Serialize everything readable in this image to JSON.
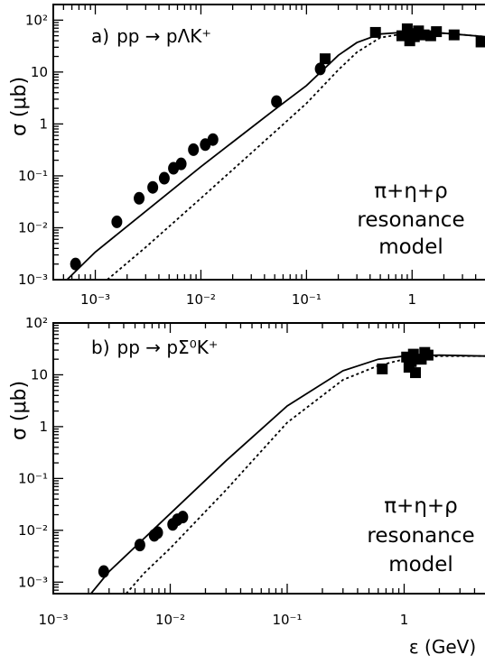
{
  "chart_data": [
    {
      "type": "scatter",
      "panel_label": "a)",
      "reaction": "pp → pΛK⁺",
      "ylabel": "σ  (μb)",
      "xlabel": "",
      "x_scale": "log",
      "y_scale": "log",
      "xlim": [
        0.0004,
        5
      ],
      "ylim": [
        0.001,
        200
      ],
      "x_ticks": [
        0.001,
        0.01,
        0.1,
        1
      ],
      "x_tick_labels": [
        "10⁻³",
        "10⁻²",
        "10⁻¹",
        "1"
      ],
      "y_ticks": [
        0.001,
        0.01,
        0.1,
        1,
        10,
        100
      ],
      "y_tick_labels": [
        "10⁻³",
        "10⁻²",
        "10⁻¹",
        "1",
        "10",
        "10²"
      ],
      "annotation": [
        "π+η+ρ",
        "resonance",
        "model"
      ],
      "series": [
        {
          "marker": "circle",
          "x": [
            0.00065,
            0.0016,
            0.0026,
            0.0035,
            0.0045,
            0.0055,
            0.0065,
            0.0085,
            0.011,
            0.013,
            0.052,
            0.135
          ],
          "y": [
            0.002,
            0.013,
            0.037,
            0.06,
            0.09,
            0.14,
            0.17,
            0.32,
            0.4,
            0.5,
            2.7,
            11.5
          ]
        },
        {
          "marker": "square",
          "x": [
            0.15,
            0.45,
            0.8,
            0.9,
            0.95,
            1.0,
            1.05,
            1.15,
            1.3,
            1.5,
            1.7,
            2.5,
            4.5
          ],
          "y": [
            18,
            58,
            50,
            68,
            40,
            55,
            48,
            62,
            52,
            50,
            60,
            52,
            38
          ]
        },
        {
          "style": "solid",
          "x": [
            0.0004,
            0.001,
            0.01,
            0.05,
            0.1,
            0.2,
            0.3,
            0.5,
            1,
            2,
            5
          ],
          "y": [
            0.00055,
            0.0034,
            0.15,
            1.9,
            5.5,
            21,
            37,
            54,
            60,
            56,
            48
          ]
        },
        {
          "style": "dotted",
          "x": [
            0.0013,
            0.003,
            0.01,
            0.05,
            0.1,
            0.2,
            0.3,
            0.5,
            1,
            2,
            5
          ],
          "y": [
            0.001,
            0.0042,
            0.037,
            0.7,
            2.5,
            11,
            24,
            46,
            58,
            56,
            48
          ]
        }
      ]
    },
    {
      "type": "scatter",
      "panel_label": "b)",
      "reaction": "pp → pΣ⁰K⁺",
      "ylabel": "σ  (μb)",
      "xlabel": "ε  (GeV)",
      "x_scale": "log",
      "y_scale": "log",
      "xlim": [
        0.001,
        5
      ],
      "ylim": [
        0.0006,
        100
      ],
      "x_ticks": [
        0.001,
        0.01,
        0.1,
        1
      ],
      "x_tick_labels": [
        "10⁻³",
        "10⁻²",
        "10⁻¹",
        "1"
      ],
      "y_ticks": [
        0.001,
        0.01,
        0.1,
        1,
        10,
        100
      ],
      "y_tick_labels": [
        "10⁻³",
        "10⁻²",
        "10⁻¹",
        "1",
        "10",
        "10²"
      ],
      "annotation": [
        "π+η+ρ",
        "resonance",
        "model"
      ],
      "series": [
        {
          "marker": "circle",
          "x": [
            0.0027,
            0.0055,
            0.0073,
            0.0078,
            0.0105,
            0.0115,
            0.0128
          ],
          "y": [
            0.0016,
            0.0052,
            0.008,
            0.009,
            0.013,
            0.016,
            0.018
          ]
        },
        {
          "marker": "square",
          "x": [
            0.65,
            1.05,
            1.1,
            1.15,
            1.2,
            1.25,
            1.4,
            1.5,
            1.6
          ],
          "y": [
            13,
            22,
            14,
            18,
            25,
            11,
            20,
            27,
            24
          ]
        },
        {
          "style": "solid",
          "x": [
            0.0021,
            0.003,
            0.01,
            0.03,
            0.1,
            0.3,
            0.6,
            1,
            2,
            5
          ],
          "y": [
            0.0006,
            0.0016,
            0.021,
            0.22,
            2.5,
            12,
            20,
            23,
            24,
            23
          ]
        },
        {
          "style": "dotted",
          "x": [
            0.0042,
            0.006,
            0.01,
            0.03,
            0.1,
            0.3,
            0.6,
            1,
            2,
            5
          ],
          "y": [
            0.0006,
            0.0015,
            0.0045,
            0.06,
            1.2,
            8,
            15,
            20,
            23,
            23
          ]
        }
      ]
    }
  ]
}
